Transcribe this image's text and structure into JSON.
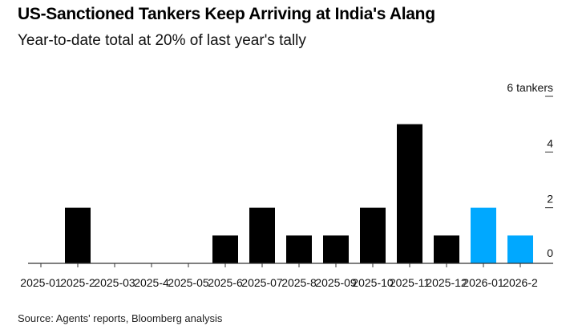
{
  "header": {
    "title": "US-Sanctioned Tankers Keep Arriving at India's Alang",
    "subtitle": "Year-to-date total at 20% of last year's tally"
  },
  "footer": {
    "source": "Source: Agents' reports, Bloomberg analysis"
  },
  "colors": {
    "past": "#000000",
    "current": "#00a8ff",
    "axis": "#333333"
  },
  "chart_data": {
    "type": "bar",
    "title": "US-Sanctioned Tankers Keep Arriving at India's Alang",
    "subtitle": "Year-to-date total at 20% of last year's tally",
    "categories": [
      "2025-01",
      "2025-2",
      "2025-03",
      "2025-4",
      "2025-05",
      "2025-6",
      "2025-07",
      "2025-8",
      "2025-09",
      "2025-10",
      "2025-11",
      "2025-12",
      "2026-01",
      "2026-2"
    ],
    "values": [
      0,
      2,
      0,
      0,
      0,
      1,
      2,
      1,
      1,
      2,
      5,
      1,
      2,
      1
    ],
    "highlight": [
      false,
      false,
      false,
      false,
      false,
      false,
      false,
      false,
      false,
      false,
      false,
      false,
      true,
      true
    ],
    "ylabel": "",
    "y_ticks": [
      0,
      2,
      4,
      6
    ],
    "y_tick_labels": [
      "0",
      "2",
      "4",
      "6 tankers"
    ],
    "ylim": [
      0,
      6
    ],
    "grid": false
  }
}
